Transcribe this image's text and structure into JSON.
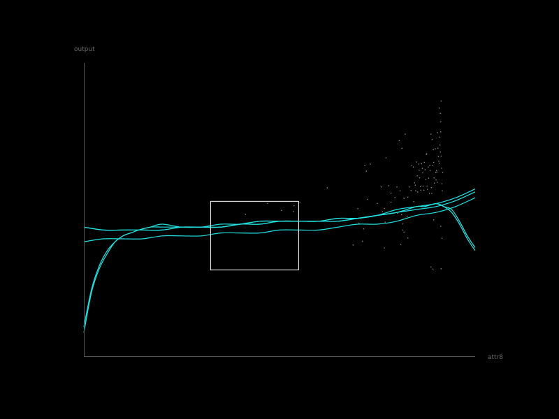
{
  "chart_data": {
    "type": "line",
    "xlabel": "attr8",
    "ylabel": "output",
    "xlim": [
      0,
      1
    ],
    "ylim": [
      0,
      1
    ],
    "grid": false,
    "colors": {
      "background": "#000000",
      "axis": "#555555",
      "curve": "#22e6e6",
      "point": "#9a9a9a",
      "selection": "#ffffff"
    },
    "series": [
      {
        "x": [
          0.0,
          0.02,
          0.04,
          0.06,
          0.08,
          0.1,
          0.12,
          0.14,
          0.17,
          0.2,
          0.25,
          0.3,
          0.35,
          0.4,
          0.45,
          0.5,
          0.55,
          0.6,
          0.65,
          0.7,
          0.75,
          0.8,
          0.85,
          0.87,
          0.9,
          0.92,
          0.94,
          0.96,
          0.98,
          1.0
        ],
        "y": [
          0.08,
          0.22,
          0.3,
          0.35,
          0.39,
          0.41,
          0.42,
          0.43,
          0.44,
          0.44,
          0.44,
          0.44,
          0.44,
          0.45,
          0.45,
          0.46,
          0.46,
          0.46,
          0.46,
          0.47,
          0.48,
          0.49,
          0.51,
          0.51,
          0.52,
          0.51,
          0.49,
          0.45,
          0.4,
          0.36
        ]
      },
      {
        "x": [
          0.0,
          0.02,
          0.04,
          0.06,
          0.08,
          0.1,
          0.12,
          0.14,
          0.17,
          0.2,
          0.25,
          0.3,
          0.35,
          0.4,
          0.45,
          0.5,
          0.55,
          0.6,
          0.65,
          0.7,
          0.75,
          0.8,
          0.85,
          0.87,
          0.9,
          0.92,
          0.94,
          0.96,
          0.98,
          1.0
        ],
        "y": [
          0.1,
          0.23,
          0.31,
          0.36,
          0.39,
          0.41,
          0.42,
          0.43,
          0.44,
          0.45,
          0.44,
          0.44,
          0.44,
          0.45,
          0.46,
          0.46,
          0.46,
          0.46,
          0.47,
          0.47,
          0.48,
          0.49,
          0.51,
          0.51,
          0.52,
          0.51,
          0.5,
          0.46,
          0.41,
          0.37
        ]
      },
      {
        "x": [
          0.0,
          0.05,
          0.1,
          0.15,
          0.2,
          0.25,
          0.3,
          0.35,
          0.4,
          0.45,
          0.5,
          0.55,
          0.6,
          0.65,
          0.7,
          0.75,
          0.8,
          0.85,
          0.9,
          0.95,
          1.0
        ],
        "y": [
          0.44,
          0.43,
          0.43,
          0.43,
          0.43,
          0.44,
          0.44,
          0.44,
          0.45,
          0.45,
          0.46,
          0.46,
          0.46,
          0.46,
          0.47,
          0.48,
          0.49,
          0.5,
          0.51,
          0.53,
          0.56
        ]
      },
      {
        "x": [
          0.0,
          0.05,
          0.1,
          0.15,
          0.2,
          0.25,
          0.3,
          0.35,
          0.4,
          0.45,
          0.5,
          0.55,
          0.6,
          0.65,
          0.7,
          0.75,
          0.8,
          0.85,
          0.9,
          0.95,
          1.0
        ],
        "y": [
          0.39,
          0.4,
          0.4,
          0.4,
          0.41,
          0.41,
          0.41,
          0.42,
          0.42,
          0.42,
          0.43,
          0.43,
          0.43,
          0.44,
          0.45,
          0.45,
          0.46,
          0.48,
          0.49,
          0.51,
          0.54
        ]
      },
      {
        "x": [
          0.0,
          0.05,
          0.1,
          0.15,
          0.2,
          0.25,
          0.3,
          0.35,
          0.4,
          0.45,
          0.5,
          0.55,
          0.6,
          0.65,
          0.7,
          0.75,
          0.8,
          0.85,
          0.9,
          0.95,
          1.0
        ],
        "y": [
          0.44,
          0.43,
          0.43,
          0.43,
          0.43,
          0.44,
          0.44,
          0.45,
          0.45,
          0.46,
          0.46,
          0.46,
          0.46,
          0.47,
          0.47,
          0.48,
          0.5,
          0.51,
          0.52,
          0.54,
          0.57
        ]
      }
    ],
    "points": [
      [
        0.413,
        0.484
      ],
      [
        0.47,
        0.521
      ],
      [
        0.505,
        0.497
      ],
      [
        0.536,
        0.493
      ],
      [
        0.537,
        0.513
      ],
      [
        0.552,
        0.523
      ],
      [
        0.622,
        0.574
      ],
      [
        0.7,
        0.503
      ],
      [
        0.703,
        0.453
      ],
      [
        0.715,
        0.434
      ],
      [
        0.718,
        0.651
      ],
      [
        0.722,
        0.631
      ],
      [
        0.732,
        0.655
      ],
      [
        0.725,
        0.535
      ],
      [
        0.75,
        0.521
      ],
      [
        0.76,
        0.577
      ],
      [
        0.763,
        0.493
      ],
      [
        0.768,
        0.504
      ],
      [
        0.77,
        0.457
      ],
      [
        0.772,
        0.676
      ],
      [
        0.778,
        0.581
      ],
      [
        0.785,
        0.556
      ],
      [
        0.785,
        0.525
      ],
      [
        0.795,
        0.541
      ],
      [
        0.8,
        0.577
      ],
      [
        0.802,
        0.487
      ],
      [
        0.806,
        0.735
      ],
      [
        0.808,
        0.564
      ],
      [
        0.812,
        0.482
      ],
      [
        0.813,
        0.709
      ],
      [
        0.815,
        0.451
      ],
      [
        0.815,
        0.43
      ],
      [
        0.818,
        0.538
      ],
      [
        0.821,
        0.757
      ],
      [
        0.826,
        0.476
      ],
      [
        0.828,
        0.542
      ],
      [
        0.832,
        0.577
      ],
      [
        0.836,
        0.565
      ],
      [
        0.838,
        0.65
      ],
      [
        0.842,
        0.645
      ],
      [
        0.843,
        0.527
      ],
      [
        0.845,
        0.591
      ],
      [
        0.847,
        0.583
      ],
      [
        0.848,
        0.564
      ],
      [
        0.85,
        0.662
      ],
      [
        0.852,
        0.615
      ],
      [
        0.853,
        0.56
      ],
      [
        0.856,
        0.655
      ],
      [
        0.857,
        0.634
      ],
      [
        0.858,
        0.608
      ],
      [
        0.86,
        0.578
      ],
      [
        0.861,
        0.566
      ],
      [
        0.863,
        0.656
      ],
      [
        0.865,
        0.64
      ],
      [
        0.866,
        0.625
      ],
      [
        0.867,
        0.58
      ],
      [
        0.869,
        0.566
      ],
      [
        0.87,
        0.661
      ],
      [
        0.872,
        0.636
      ],
      [
        0.874,
        0.603
      ],
      [
        0.875,
        0.688
      ],
      [
        0.876,
        0.69
      ],
      [
        0.877,
        0.58
      ],
      [
        0.878,
        0.569
      ],
      [
        0.88,
        0.645
      ],
      [
        0.881,
        0.607
      ],
      [
        0.883,
        0.555
      ],
      [
        0.884,
        0.651
      ],
      [
        0.885,
        0.633
      ],
      [
        0.887,
        0.757
      ],
      [
        0.888,
        0.575
      ],
      [
        0.889,
        0.555
      ],
      [
        0.89,
        0.739
      ],
      [
        0.891,
        0.651
      ],
      [
        0.893,
        0.704
      ],
      [
        0.894,
        0.661
      ],
      [
        0.895,
        0.608
      ],
      [
        0.896,
        0.59
      ],
      [
        0.898,
        0.707
      ],
      [
        0.899,
        0.626
      ],
      [
        0.9,
        0.601
      ],
      [
        0.901,
        0.633
      ],
      [
        0.902,
        0.628
      ],
      [
        0.903,
        0.593
      ],
      [
        0.904,
        0.762
      ],
      [
        0.905,
        0.709
      ],
      [
        0.906,
        0.681
      ],
      [
        0.907,
        0.665
      ],
      [
        0.908,
        0.658
      ],
      [
        0.908,
        0.846
      ],
      [
        0.909,
        0.747
      ],
      [
        0.91,
        0.72
      ],
      [
        0.911,
        0.696
      ],
      [
        0.911,
        0.828
      ],
      [
        0.912,
        0.799
      ],
      [
        0.912,
        0.765
      ],
      [
        0.913,
        0.87
      ],
      [
        0.913,
        0.682
      ],
      [
        0.914,
        0.641
      ],
      [
        0.915,
        0.588
      ],
      [
        0.916,
        0.564
      ],
      [
        0.917,
        0.626
      ],
      [
        0.912,
        0.443
      ],
      [
        0.894,
        0.465
      ],
      [
        0.887,
        0.304
      ],
      [
        0.892,
        0.297
      ],
      [
        0.913,
        0.298
      ],
      [
        0.828,
        0.403
      ],
      [
        0.81,
        0.381
      ],
      [
        0.818,
        0.423
      ],
      [
        0.768,
        0.369
      ],
      [
        0.688,
        0.379
      ],
      [
        0.712,
        0.392
      ],
      [
        0.915,
        0.402
      ]
    ],
    "selection_box": {
      "x": [
        0.323,
        0.548
      ],
      "y": [
        0.295,
        0.529
      ]
    }
  }
}
